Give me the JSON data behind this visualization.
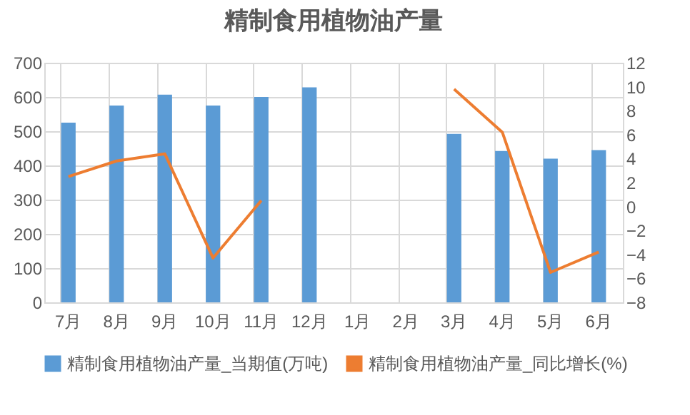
{
  "chart_data": {
    "type": "bar",
    "title": "精制食用植物油产量",
    "categories": [
      "7月",
      "8月",
      "9月",
      "10月",
      "11月",
      "12月",
      "1月",
      "2月",
      "3月",
      "4月",
      "5月",
      "6月"
    ],
    "series": [
      {
        "name": "精制食用植物油产量_当期值(万吨)",
        "color": "#5b9bd5",
        "values": [
          525,
          575,
          607,
          575,
          600,
          628,
          null,
          null,
          492,
          442,
          420,
          445
        ]
      },
      {
        "name": "精制食用植物油产量_同比增长(%)",
        "type": "line",
        "axis": "y2",
        "color": "#ed7d31",
        "values": [
          2.5,
          3.8,
          4.4,
          -4.3,
          0.5,
          null,
          null,
          null,
          9.8,
          6.2,
          -5.5,
          -3.8
        ]
      }
    ],
    "ylim": [
      0,
      700
    ],
    "yticks": [
      0,
      100,
      200,
      300,
      400,
      500,
      600,
      700
    ],
    "y2lim": [
      -8,
      12
    ],
    "y2ticks": [
      -8,
      -6,
      -4,
      -2,
      0,
      2,
      4,
      6,
      8,
      10,
      12
    ],
    "grid": true,
    "legend": "bottom"
  }
}
